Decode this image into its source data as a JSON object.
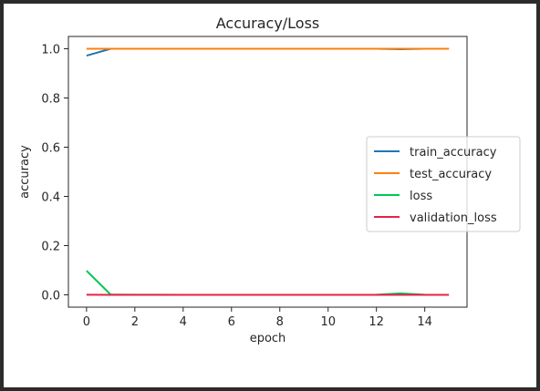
{
  "chart_data": {
    "type": "line",
    "title": "Accuracy/Loss",
    "xlabel": "epoch",
    "ylabel": "accuracy",
    "xlim": [
      -0.75,
      15.75
    ],
    "ylim": [
      -0.05,
      1.05
    ],
    "xticks": [
      0,
      2,
      4,
      6,
      8,
      10,
      12,
      14
    ],
    "yticks": [
      0.0,
      0.2,
      0.4,
      0.6,
      0.8,
      1.0
    ],
    "xtick_labels": [
      "0",
      "2",
      "4",
      "6",
      "8",
      "10",
      "12",
      "14"
    ],
    "ytick_labels": [
      "0.0",
      "0.2",
      "0.4",
      "0.6",
      "0.8",
      "1.0"
    ],
    "grid": false,
    "legend_position": "center-right",
    "x": [
      0,
      1,
      2,
      3,
      4,
      5,
      6,
      7,
      8,
      9,
      10,
      11,
      12,
      13,
      14,
      15
    ],
    "series": [
      {
        "name": "train_accuracy",
        "color": "#1f77b4",
        "values": [
          0.972,
          1.0,
          1.0,
          1.0,
          1.0,
          1.0,
          1.0,
          1.0,
          1.0,
          1.0,
          1.0,
          1.0,
          1.0,
          0.998,
          1.0,
          1.0
        ]
      },
      {
        "name": "test_accuracy",
        "color": "#ff7f0e",
        "values": [
          1.0,
          1.0,
          1.0,
          1.0,
          1.0,
          1.0,
          1.0,
          1.0,
          1.0,
          1.0,
          1.0,
          1.0,
          1.0,
          1.0,
          1.0,
          1.0
        ]
      },
      {
        "name": "loss",
        "color": "#00c853",
        "values": [
          0.098,
          0.001,
          0.0005,
          0.0003,
          0.0002,
          0.0002,
          0.0002,
          0.0001,
          0.0001,
          0.0001,
          0.0001,
          0.0001,
          0.0003,
          0.006,
          0.0005,
          0.0002
        ]
      },
      {
        "name": "validation_loss",
        "color": "#e8204a",
        "values": [
          0.0003,
          0.0002,
          0.0001,
          0.0001,
          0.0001,
          0.0001,
          0.0001,
          0.0001,
          0.0001,
          0.0001,
          0.0001,
          0.0001,
          0.0001,
          0.0001,
          0.0001,
          0.0001
        ]
      }
    ]
  }
}
